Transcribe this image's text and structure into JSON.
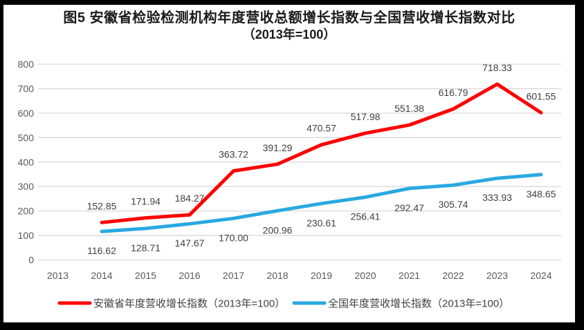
{
  "title": {
    "line1": "图5  安徽省检验检测机构年度营收总额增长指数与全国营收增长指数对比",
    "line2": "（2013年=100）"
  },
  "chart_data": {
    "type": "line",
    "categories": [
      "2013",
      "2014",
      "2015",
      "2016",
      "2017",
      "2018",
      "2019",
      "2020",
      "2021",
      "2022",
      "2023",
      "2024"
    ],
    "series": [
      {
        "name": "安徽省年度营收增长指数（2013年=100）",
        "color": "#FF0000",
        "start_category": "2014",
        "values": [
          152.85,
          171.94,
          184.27,
          363.72,
          391.29,
          470.57,
          517.98,
          551.38,
          616.79,
          718.33,
          601.55
        ],
        "data_label_position": "above"
      },
      {
        "name": "全国年度营收增长指数（2013年=100）",
        "color": "#29A9E1",
        "start_category": "2014",
        "values": [
          116.62,
          128.71,
          147.67,
          170.0,
          200.96,
          230.61,
          256.41,
          292.47,
          305.74,
          333.93,
          348.65
        ],
        "data_label_position": "below"
      }
    ],
    "ylim": [
      0,
      800
    ],
    "ytick_interval": 100,
    "yticks": [
      0,
      100,
      200,
      300,
      400,
      500,
      600,
      700,
      800
    ],
    "grid": true,
    "legend_position": "bottom",
    "data_label_decimals": 2
  },
  "colors": {
    "background": "#FFFFFF",
    "frame": "#000000",
    "grid": "#D9D9D9",
    "tick_label": "#595959",
    "data_label": "#404040",
    "legend_text": "#404040",
    "title_text": "#1A1A1A"
  }
}
